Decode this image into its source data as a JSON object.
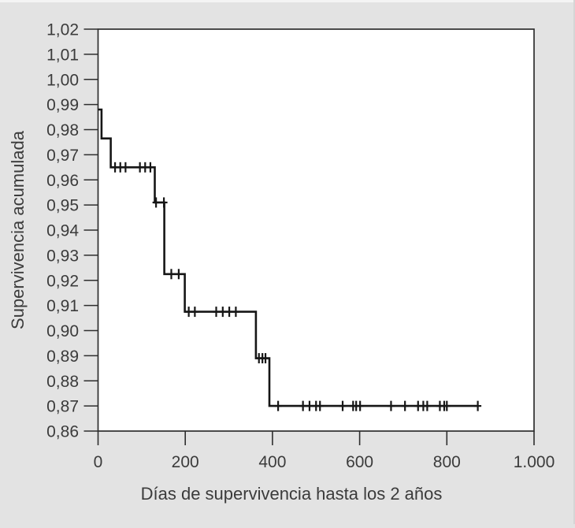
{
  "figure": {
    "background_color": "#e3e3e3",
    "plot_background_color": "#ffffff",
    "axis_color": "#2e2e2e",
    "curve_color": "#161616",
    "text_color": "#3b3b3b"
  },
  "chart_data": {
    "type": "line",
    "subtype": "kaplan-meier-step",
    "title": "",
    "xlabel": "Días de supervivencia hasta los 2 años",
    "ylabel": "Supervivencia acumulada",
    "xlim": [
      0,
      1000
    ],
    "ylim": [
      0.86,
      1.02
    ],
    "grid": false,
    "legend": "none",
    "x_ticks": [
      {
        "value": 0,
        "label": "0"
      },
      {
        "value": 200,
        "label": "200"
      },
      {
        "value": 400,
        "label": "400"
      },
      {
        "value": 600,
        "label": "600"
      },
      {
        "value": 800,
        "label": "800"
      },
      {
        "value": 1000,
        "label": "1.000"
      }
    ],
    "y_ticks": [
      {
        "value": 1.02,
        "label": "1,02"
      },
      {
        "value": 1.01,
        "label": "1,01"
      },
      {
        "value": 1.0,
        "label": "1,00"
      },
      {
        "value": 0.99,
        "label": "0,99"
      },
      {
        "value": 0.98,
        "label": "0,98"
      },
      {
        "value": 0.97,
        "label": "0,97"
      },
      {
        "value": 0.96,
        "label": "0,96"
      },
      {
        "value": 0.95,
        "label": "0,95"
      },
      {
        "value": 0.94,
        "label": "0,94"
      },
      {
        "value": 0.93,
        "label": "0,93"
      },
      {
        "value": 0.92,
        "label": "0,92"
      },
      {
        "value": 0.91,
        "label": "0,91"
      },
      {
        "value": 0.9,
        "label": "0,90"
      },
      {
        "value": 0.89,
        "label": "0,89"
      },
      {
        "value": 0.88,
        "label": "0,88"
      },
      {
        "value": 0.87,
        "label": "0,87"
      },
      {
        "value": 0.86,
        "label": "0,86"
      }
    ],
    "series": [
      {
        "name": "Supervivencia acumulada",
        "step_points": [
          [
            0,
            0.988
          ],
          [
            8,
            0.988
          ],
          [
            8,
            0.9765
          ],
          [
            29,
            0.9765
          ],
          [
            29,
            0.965
          ],
          [
            130,
            0.965
          ],
          [
            130,
            0.951
          ],
          [
            152,
            0.951
          ],
          [
            152,
            0.9225
          ],
          [
            199,
            0.9225
          ],
          [
            199,
            0.9075
          ],
          [
            362,
            0.9075
          ],
          [
            362,
            0.889
          ],
          [
            393,
            0.889
          ],
          [
            393,
            0.87
          ],
          [
            871,
            0.87
          ]
        ]
      }
    ],
    "censored_points": [
      [
        39,
        0.965
      ],
      [
        51,
        0.965
      ],
      [
        63,
        0.965
      ],
      [
        96,
        0.965
      ],
      [
        108,
        0.965
      ],
      [
        120,
        0.965
      ],
      [
        133,
        0.951
      ],
      [
        151,
        0.951
      ],
      [
        168,
        0.9225
      ],
      [
        185,
        0.9225
      ],
      [
        208,
        0.9075
      ],
      [
        222,
        0.9075
      ],
      [
        271,
        0.9075
      ],
      [
        286,
        0.9075
      ],
      [
        301,
        0.9075
      ],
      [
        316,
        0.9075
      ],
      [
        369,
        0.889
      ],
      [
        377,
        0.889
      ],
      [
        384,
        0.889
      ],
      [
        413,
        0.87
      ],
      [
        470,
        0.87
      ],
      [
        485,
        0.87
      ],
      [
        500,
        0.87
      ],
      [
        509,
        0.87
      ],
      [
        561,
        0.87
      ],
      [
        585,
        0.87
      ],
      [
        592,
        0.87
      ],
      [
        601,
        0.87
      ],
      [
        672,
        0.87
      ],
      [
        704,
        0.87
      ],
      [
        734,
        0.87
      ],
      [
        746,
        0.87
      ],
      [
        755,
        0.87
      ],
      [
        784,
        0.87
      ],
      [
        794,
        0.87
      ],
      [
        800,
        0.87
      ],
      [
        871,
        0.87
      ]
    ]
  }
}
